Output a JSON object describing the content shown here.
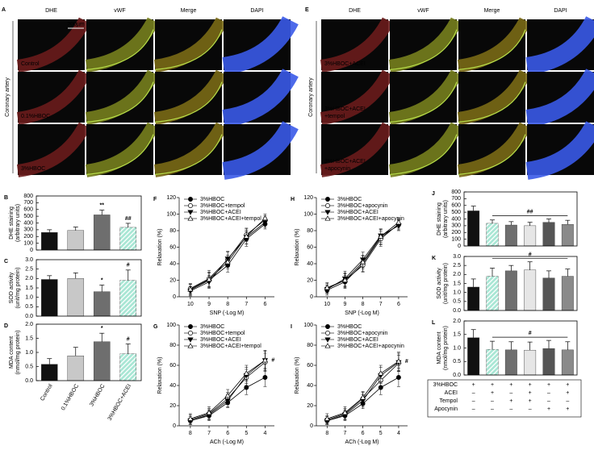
{
  "image_panels": [
    {
      "letter": "A",
      "columns": [
        "DHE",
        "vWF",
        "Merge",
        "DAPI"
      ],
      "column_colors": [
        "#e02828",
        "#8cc63f",
        "#000000",
        "#2b4bd8"
      ],
      "row_title": "Coronary artery",
      "rows": [
        [
          "Control"
        ],
        [
          "0.1%HBOC"
        ],
        [
          "3%HBOC"
        ]
      ],
      "scale_bar": "200µm"
    },
    {
      "letter": "E",
      "columns": [
        "DHE",
        "vWF",
        "Merge",
        "DAPI"
      ],
      "column_colors": [
        "#e02828",
        "#8cc63f",
        "#000000",
        "#2b4bd8"
      ],
      "row_title": "Coronary artery",
      "rows": [
        [
          "3%HBOC+ACEI"
        ],
        [
          "3%HBOC+ACEI",
          "+tempol"
        ],
        [
          "3%HBOC+ACEI",
          "+apocynin"
        ]
      ]
    }
  ],
  "chart_data": [
    {
      "type": "bar",
      "letter": "B",
      "ylabel": [
        "DHE staining",
        "(arbitrary units)"
      ],
      "values": [
        260,
        290,
        520,
        335
      ],
      "errors": [
        40,
        50,
        70,
        60
      ],
      "annotations": [
        null,
        null,
        "**",
        "##"
      ],
      "colors": [
        "#111111",
        "#c8c8c8",
        "#6e6e6e",
        "#a8e6d4"
      ],
      "hatched": [
        false,
        false,
        false,
        true
      ],
      "ylim": [
        0,
        800
      ],
      "yticks": [
        0,
        100,
        200,
        300,
        400,
        500,
        600,
        700,
        800
      ]
    },
    {
      "type": "bar",
      "letter": "C",
      "ylabel": [
        "SOD activity",
        "(unit/mg protein)"
      ],
      "values": [
        1.95,
        2.0,
        1.3,
        1.9
      ],
      "errors": [
        0.2,
        0.3,
        0.35,
        0.55
      ],
      "annotations": [
        null,
        null,
        "*",
        "#"
      ],
      "colors": [
        "#111111",
        "#c8c8c8",
        "#6e6e6e",
        "#a8e6d4"
      ],
      "hatched": [
        false,
        false,
        false,
        true
      ],
      "ylim": [
        0,
        3
      ],
      "yticks": [
        {
          "value": 0,
          "label": "0.0"
        },
        {
          "value": 0.5,
          "label": "0.5"
        },
        {
          "value": 1,
          "label": "1.0"
        },
        {
          "value": 1.5,
          "label": "1.5"
        },
        {
          "value": 2,
          "label": "2.0"
        },
        {
          "value": 2.5,
          "label": "2.5"
        },
        {
          "value": 3,
          "label": "3.0"
        }
      ]
    },
    {
      "type": "bar",
      "letter": "D",
      "ylabel": [
        "MDA content",
        "(nmol/mg protein)"
      ],
      "categories": [
        "Control",
        "0.1%HBOC",
        "3%HBOC",
        "3%HBOC+ACEI"
      ],
      "values": [
        0.58,
        0.88,
        1.38,
        0.95
      ],
      "errors": [
        0.2,
        0.3,
        0.3,
        0.35
      ],
      "annotations": [
        null,
        null,
        "*",
        "#"
      ],
      "colors": [
        "#111111",
        "#c8c8c8",
        "#6e6e6e",
        "#a8e6d4"
      ],
      "hatched": [
        false,
        false,
        false,
        true
      ],
      "ylim": [
        0,
        2
      ],
      "yticks": [
        {
          "value": 0,
          "label": "0.0"
        },
        {
          "value": 0.5,
          "label": "0.5"
        },
        {
          "value": 1,
          "label": "1.0"
        },
        {
          "value": 1.5,
          "label": "1.5"
        },
        {
          "value": 2,
          "label": "2.0"
        }
      ]
    },
    {
      "type": "line",
      "letter": "F",
      "ylabel": "Relaxation (%)",
      "xlabel": "SNP (-Log M)",
      "x": [
        10,
        9,
        8,
        7,
        6
      ],
      "xlim": [
        10.6,
        5.5
      ],
      "xticks": [
        10,
        9,
        8,
        7,
        6
      ],
      "ylim": [
        0,
        120
      ],
      "yticks": [
        0,
        20,
        40,
        60,
        80,
        100,
        120
      ],
      "series": [
        {
          "name": "3%HBOC",
          "marker": "circle",
          "filled": true,
          "color": "#000000",
          "values": [
            8,
            20,
            38,
            70,
            88
          ],
          "errors": [
            7,
            9,
            8,
            9,
            6
          ]
        },
        {
          "name": "3%HBOC+tempol",
          "marker": "circle",
          "filled": false,
          "color": "#000000",
          "values": [
            10,
            22,
            45,
            75,
            93
          ],
          "errors": [
            6,
            10,
            9,
            8,
            5
          ]
        },
        {
          "name": "3%HBOC+ACEI",
          "marker": "triangle-down",
          "filled": true,
          "color": "#000000",
          "values": [
            7,
            18,
            46,
            72,
            90
          ],
          "errors": [
            5,
            8,
            9,
            8,
            6
          ]
        },
        {
          "name": "3%HBOC+ACEI+tempol",
          "marker": "triangle-up",
          "filled": false,
          "color": "#000000",
          "values": [
            9,
            21,
            42,
            73,
            95
          ],
          "errors": [
            6,
            9,
            8,
            9,
            5
          ]
        }
      ]
    },
    {
      "type": "line",
      "letter": "G",
      "ylabel": "Relaxation (%)",
      "xlabel": "ACh (-Log M)",
      "annotation": "#",
      "x": [
        8,
        7,
        6,
        5,
        4
      ],
      "xlim": [
        8.6,
        3.5
      ],
      "xticks": [
        8,
        7,
        6,
        5,
        4
      ],
      "ylim": [
        0,
        100
      ],
      "yticks": [
        0,
        20,
        40,
        60,
        80,
        100
      ],
      "series": [
        {
          "name": "3%HBOC",
          "marker": "circle",
          "filled": true,
          "color": "#000000",
          "values": [
            5,
            10,
            23,
            38,
            48
          ],
          "errors": [
            4,
            5,
            5,
            7,
            9
          ]
        },
        {
          "name": "3%HBOC+tempol",
          "marker": "circle",
          "filled": false,
          "color": "#000000",
          "values": [
            6,
            12,
            27,
            48,
            63
          ],
          "errors": [
            5,
            5,
            6,
            8,
            9
          ]
        },
        {
          "name": "3%HBOC+ACEI",
          "marker": "triangle-down",
          "filled": true,
          "color": "#000000",
          "values": [
            5,
            11,
            25,
            50,
            65
          ],
          "errors": [
            4,
            5,
            6,
            8,
            10
          ]
        },
        {
          "name": "3%HBOC+ACEI+tempol",
          "marker": "triangle-up",
          "filled": false,
          "color": "#000000",
          "values": [
            7,
            13,
            30,
            52,
            65
          ],
          "errors": [
            5,
            6,
            6,
            8,
            9
          ]
        }
      ]
    },
    {
      "type": "line",
      "letter": "H",
      "ylabel": "Relaxation (%)",
      "xlabel": "SNP (-Log M)",
      "x": [
        10,
        9,
        8,
        7,
        6
      ],
      "xlim": [
        10.6,
        5.5
      ],
      "xticks": [
        10,
        9,
        8,
        7,
        6
      ],
      "ylim": [
        0,
        120
      ],
      "yticks": [
        0,
        20,
        40,
        60,
        80,
        100,
        120
      ],
      "series": [
        {
          "name": "3%HBOC",
          "marker": "circle",
          "filled": true,
          "color": "#000000",
          "values": [
            8,
            18,
            40,
            72,
            87
          ],
          "errors": [
            6,
            8,
            9,
            9,
            6
          ]
        },
        {
          "name": "3%HBOC+apocynin",
          "marker": "circle",
          "filled": false,
          "color": "#000000",
          "values": [
            10,
            20,
            38,
            70,
            88
          ],
          "errors": [
            6,
            9,
            8,
            9,
            5
          ]
        },
        {
          "name": "3%HBOC+ACEI",
          "marker": "triangle-down",
          "filled": true,
          "color": "#000000",
          "values": [
            9,
            22,
            45,
            74,
            86
          ],
          "errors": [
            5,
            9,
            9,
            8,
            6
          ]
        },
        {
          "name": "3%HBOC+ACEI+apocynin",
          "marker": "triangle-up",
          "filled": false,
          "color": "#000000",
          "values": [
            11,
            20,
            42,
            73,
            90
          ],
          "errors": [
            6,
            8,
            8,
            9,
            5
          ]
        }
      ]
    },
    {
      "type": "line",
      "letter": "I",
      "ylabel": "Relaxation (%)",
      "xlabel": "ACh (-Log M)",
      "annotation": "#",
      "x": [
        8,
        7,
        6,
        5,
        4
      ],
      "xlim": [
        8.6,
        3.5
      ],
      "xticks": [
        8,
        7,
        6,
        5,
        4
      ],
      "ylim": [
        0,
        100
      ],
      "yticks": [
        0,
        20,
        40,
        60,
        80,
        100
      ],
      "series": [
        {
          "name": "3%HBOC",
          "marker": "circle",
          "filled": true,
          "color": "#000000",
          "values": [
            5,
            10,
            22,
            38,
            48
          ],
          "errors": [
            4,
            5,
            5,
            7,
            9
          ]
        },
        {
          "name": "3%HBOC+apocynin",
          "marker": "circle",
          "filled": false,
          "color": "#000000",
          "values": [
            6,
            12,
            27,
            45,
            62
          ],
          "errors": [
            4,
            5,
            6,
            8,
            8
          ]
        },
        {
          "name": "3%HBOC+ACEI",
          "marker": "triangle-down",
          "filled": true,
          "color": "#000000",
          "values": [
            5,
            11,
            25,
            50,
            63
          ],
          "errors": [
            4,
            5,
            6,
            8,
            9
          ]
        },
        {
          "name": "3%HBOC+ACEI+apocynin",
          "marker": "triangle-up",
          "filled": false,
          "color": "#000000",
          "values": [
            7,
            13,
            28,
            52,
            64
          ],
          "errors": [
            5,
            6,
            6,
            8,
            9
          ]
        }
      ]
    },
    {
      "type": "bar",
      "letter": "J",
      "ylabel": [
        "DHE staining",
        "(arbitrary units)"
      ],
      "values": [
        520,
        335,
        310,
        300,
        350,
        320
      ],
      "errors": [
        70,
        50,
        50,
        50,
        50,
        60
      ],
      "bracket_label": "##",
      "colors": [
        "#111111",
        "#a8e6d4",
        "#6e6e6e",
        "#e6e6e6",
        "#555555",
        "#8a8a8a"
      ],
      "hatched": [
        false,
        true,
        false,
        false,
        false,
        false
      ],
      "ylim": [
        0,
        800
      ],
      "yticks": [
        0,
        100,
        200,
        300,
        400,
        500,
        600,
        700,
        800
      ]
    },
    {
      "type": "bar",
      "letter": "K",
      "ylabel": [
        "SOD activity",
        "(unit/mg protein)"
      ],
      "values": [
        1.3,
        1.9,
        2.2,
        2.25,
        1.8,
        1.9
      ],
      "errors": [
        0.45,
        0.45,
        0.3,
        0.45,
        0.4,
        0.4
      ],
      "bracket_label": "#",
      "colors": [
        "#111111",
        "#a8e6d4",
        "#6e6e6e",
        "#e6e6e6",
        "#555555",
        "#8a8a8a"
      ],
      "hatched": [
        false,
        true,
        false,
        false,
        false,
        false
      ],
      "ylim": [
        0,
        3
      ],
      "yticks": [
        {
          "value": 0,
          "label": "0.0"
        },
        {
          "value": 0.5,
          "label": "0.5"
        },
        {
          "value": 1,
          "label": "1.0"
        },
        {
          "value": 1.5,
          "label": "1.5"
        },
        {
          "value": 2,
          "label": "2.0"
        },
        {
          "value": 2.5,
          "label": "2.5"
        },
        {
          "value": 3,
          "label": "3.0"
        }
      ]
    },
    {
      "type": "bar",
      "letter": "L",
      "ylabel": [
        "MDA content",
        "(nmol/mg protein)"
      ],
      "values": [
        1.38,
        0.95,
        0.93,
        0.92,
        0.98,
        0.93
      ],
      "errors": [
        0.3,
        0.3,
        0.3,
        0.3,
        0.3,
        0.3
      ],
      "bracket_label": "#",
      "colors": [
        "#111111",
        "#a8e6d4",
        "#6e6e6e",
        "#e6e6e6",
        "#555555",
        "#8a8a8a"
      ],
      "hatched": [
        false,
        true,
        false,
        false,
        false,
        false
      ],
      "ylim": [
        0,
        2
      ],
      "yticks": [
        {
          "value": 0,
          "label": "0.0"
        },
        {
          "value": 0.5,
          "label": "0.5"
        },
        {
          "value": 1,
          "label": "1.0"
        },
        {
          "value": 1.5,
          "label": "1.5"
        },
        {
          "value": 2,
          "label": "2.0"
        }
      ],
      "conditions": [
        {
          "name": "3%HBOC",
          "signs": [
            "+",
            "+",
            "+",
            "+",
            "+",
            "+"
          ]
        },
        {
          "name": "ACEI",
          "signs": [
            "–",
            "+",
            "–",
            "+",
            "–",
            "+"
          ]
        },
        {
          "name": "Tempol",
          "signs": [
            "–",
            "–",
            "+",
            "+",
            "–",
            "–"
          ]
        },
        {
          "name": "Apocynin",
          "signs": [
            "–",
            "–",
            "–",
            "–",
            "+",
            "+"
          ]
        }
      ]
    }
  ]
}
